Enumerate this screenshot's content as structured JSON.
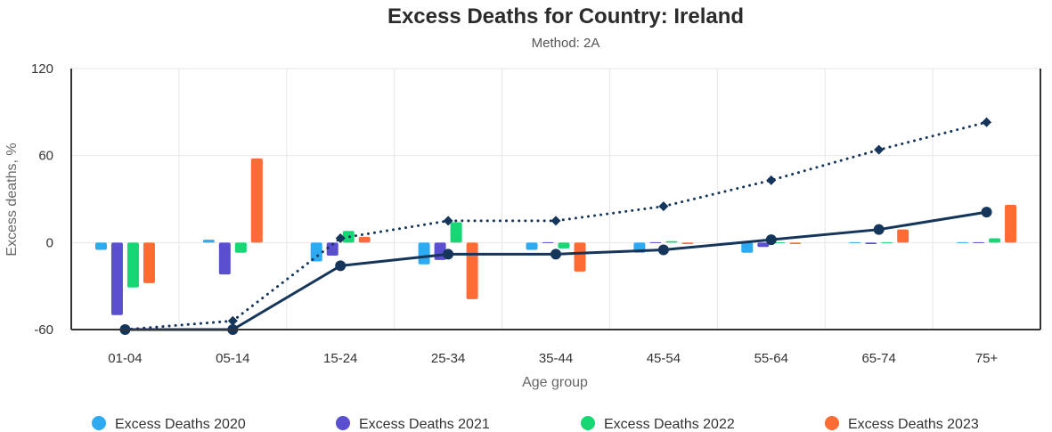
{
  "chart_data": {
    "type": "bar",
    "title": "Excess Deaths for Country: Ireland",
    "subtitle": "Method: 2A",
    "xlabel": "Age group",
    "ylabel": "Excess deaths, %",
    "ylim": [
      -60,
      120
    ],
    "yticks": [
      "120",
      "60",
      "0",
      "-60"
    ],
    "ytick_values": [
      120,
      60,
      0,
      -60
    ],
    "grid": true,
    "legend_position": "bottom",
    "categories": [
      "01-04",
      "05-14",
      "15-24",
      "25-34",
      "35-44",
      "45-54",
      "55-64",
      "65-74",
      "75+"
    ],
    "series": [
      {
        "name": "Excess Deaths 2020",
        "color": "#2eaaf2",
        "values": [
          -5,
          2,
          -13,
          -15,
          -5,
          -7,
          -7,
          0,
          0
        ]
      },
      {
        "name": "Excess Deaths 2021",
        "color": "#5a4fcf",
        "values": [
          -50,
          -22,
          -9,
          -12,
          0,
          0,
          -3,
          -1,
          0
        ]
      },
      {
        "name": "Excess Deaths 2022",
        "color": "#17d674",
        "values": [
          -31,
          -7,
          8,
          14,
          -4,
          1,
          0,
          0,
          3
        ]
      },
      {
        "name": "Excess Deaths 2023",
        "color": "#ff6b35",
        "values": [
          -28,
          58,
          4,
          -39,
          -20,
          -1,
          -1,
          9,
          26
        ]
      }
    ],
    "lines": [
      {
        "style": "dotted",
        "marker": "diamond",
        "color": "#15365a",
        "values": [
          -60,
          -54,
          3,
          15,
          15,
          25,
          43,
          64,
          83
        ]
      },
      {
        "style": "solid",
        "marker": "circle",
        "color": "#15365a",
        "values": [
          -60,
          -60,
          -16,
          -8,
          -8,
          -5,
          2,
          9,
          21
        ]
      }
    ]
  }
}
